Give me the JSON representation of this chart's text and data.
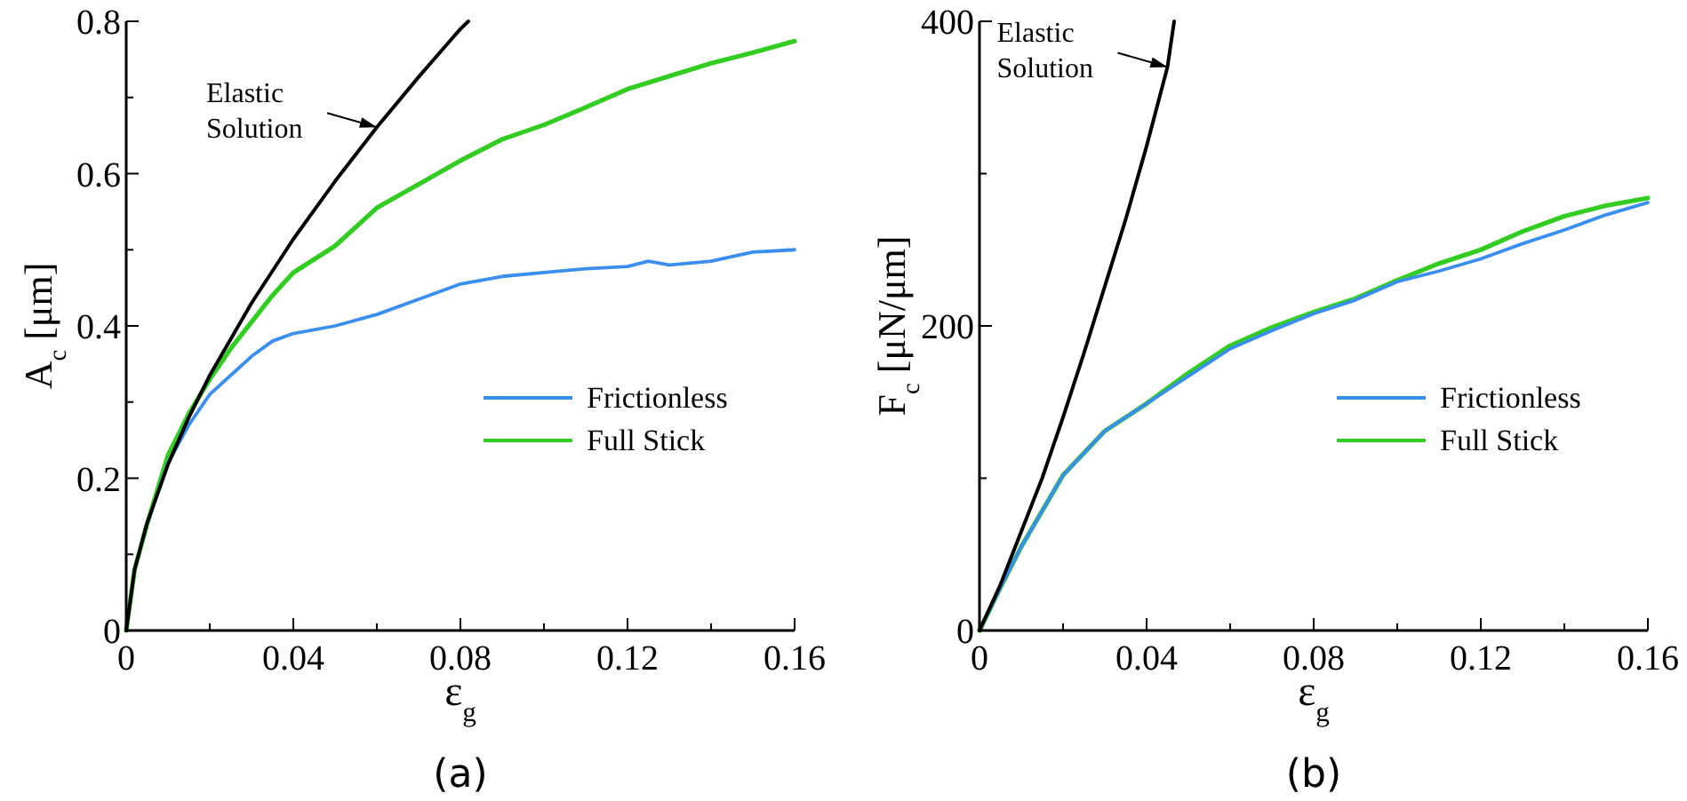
{
  "chart_data": [
    {
      "type": "line",
      "title": "(a)",
      "xlabel": "ε$_{g}$",
      "ylabel": "A$_{c}$ [μm]",
      "xlim": [
        0,
        0.16
      ],
      "ylim": [
        0,
        0.8
      ],
      "xticks": [
        0,
        {
          "value": 0.02,
          "label": null
        },
        0.04,
        {
          "value": 0.06,
          "label": null
        },
        0.08,
        {
          "value": 0.1,
          "label": null
        },
        0.12,
        {
          "value": 0.14,
          "label": null
        },
        0.16
      ],
      "yticks": [
        0,
        {
          "value": 0.1,
          "label": null
        },
        0.2,
        {
          "value": 0.3,
          "label": null
        },
        0.4,
        {
          "value": 0.5,
          "label": null
        },
        0.6,
        {
          "value": 0.7,
          "label": null
        },
        0.8
      ],
      "legend": "right",
      "annotations": [
        {
          "text": "Elastic Solution",
          "x": 0.06,
          "y": 0.661
        }
      ],
      "series": [
        {
          "color": "#000000",
          "x": [
            0,
            0.002,
            0.005,
            0.01,
            0.015,
            0.02,
            0.03,
            0.04,
            0.05,
            0.06,
            0.07,
            0.08,
            0.0819
          ],
          "values": [
            0,
            0.08,
            0.141,
            0.218,
            0.28,
            0.335,
            0.43,
            0.514,
            0.59,
            0.661,
            0.727,
            0.79,
            0.8
          ]
        },
        {
          "name": "Frictionless",
          "color": "#3a8ef0",
          "x": [
            0.005,
            0.01,
            0.015,
            0.02,
            0.025,
            0.03,
            0.035,
            0.04,
            0.05,
            0.06,
            0.07,
            0.08,
            0.09,
            0.1,
            0.11,
            0.12,
            0.125,
            0.13,
            0.14,
            0.15,
            0.16
          ],
          "values": [
            0.14,
            0.22,
            0.27,
            0.31,
            0.335,
            0.36,
            0.38,
            0.39,
            0.4,
            0.415,
            0.435,
            0.455,
            0.465,
            0.47,
            0.475,
            0.478,
            0.485,
            0.48,
            0.485,
            0.497,
            0.5
          ]
        },
        {
          "name": "Full Stick",
          "color": "#33cc22",
          "x": [
            0,
            0.002,
            0.005,
            0.01,
            0.015,
            0.02,
            0.025,
            0.03,
            0.035,
            0.04,
            0.05,
            0.06,
            0.07,
            0.08,
            0.09,
            0.1,
            0.11,
            0.12,
            0.13,
            0.14,
            0.15,
            0.16
          ],
          "values": [
            0,
            0.08,
            0.14,
            0.23,
            0.285,
            0.33,
            0.37,
            0.405,
            0.44,
            0.47,
            0.505,
            0.555,
            0.586,
            0.617,
            0.645,
            0.664,
            0.687,
            0.711,
            0.728,
            0.745,
            0.759,
            0.774
          ]
        }
      ]
    },
    {
      "type": "line",
      "title": "(b)",
      "xlabel": "ε$_{g}$",
      "ylabel": "F$_{c}$ [μN/μm]",
      "xlim": [
        0,
        0.16
      ],
      "ylim": [
        0,
        400
      ],
      "xticks": [
        0,
        {
          "value": 0.02,
          "label": null
        },
        0.04,
        {
          "value": 0.06,
          "label": null
        },
        0.08,
        {
          "value": 0.1,
          "label": null
        },
        0.12,
        {
          "value": 0.14,
          "label": null
        },
        0.16
      ],
      "yticks": [
        0,
        {
          "value": 100,
          "label": null
        },
        200,
        {
          "value": 300,
          "label": null
        },
        400
      ],
      "legend": "right",
      "annotations": [
        {
          "text": "Elastic Solution",
          "x": 0.045,
          "y": 370
        }
      ],
      "series": [
        {
          "color": "#000000",
          "x": [
            0,
            0.005,
            0.01,
            0.015,
            0.02,
            0.025,
            0.03,
            0.035,
            0.04,
            0.045,
            0.0466
          ],
          "values": [
            0,
            30,
            65,
            100,
            140,
            182,
            226,
            270,
            318,
            370,
            400
          ]
        },
        {
          "name": "Frictionless",
          "color": "#3a8ef0",
          "x": [
            0,
            0.005,
            0.01,
            0.02,
            0.03,
            0.04,
            0.05,
            0.06,
            0.07,
            0.08,
            0.09,
            0.1,
            0.11,
            0.12,
            0.13,
            0.14,
            0.15,
            0.16
          ],
          "values": [
            0,
            28,
            55,
            102,
            131,
            149,
            167,
            185,
            197,
            208,
            217,
            229,
            236,
            244,
            254,
            263,
            273,
            281
          ]
        },
        {
          "name": "Full Stick",
          "color": "#33cc22",
          "x": [
            0,
            0.005,
            0.01,
            0.02,
            0.03,
            0.04,
            0.05,
            0.06,
            0.07,
            0.08,
            0.09,
            0.1,
            0.11,
            0.12,
            0.13,
            0.14,
            0.15,
            0.16
          ],
          "values": [
            0,
            28,
            55,
            102,
            131,
            149,
            169,
            187,
            199,
            209,
            218,
            230,
            241,
            250,
            262,
            272,
            279,
            284
          ]
        }
      ]
    }
  ]
}
